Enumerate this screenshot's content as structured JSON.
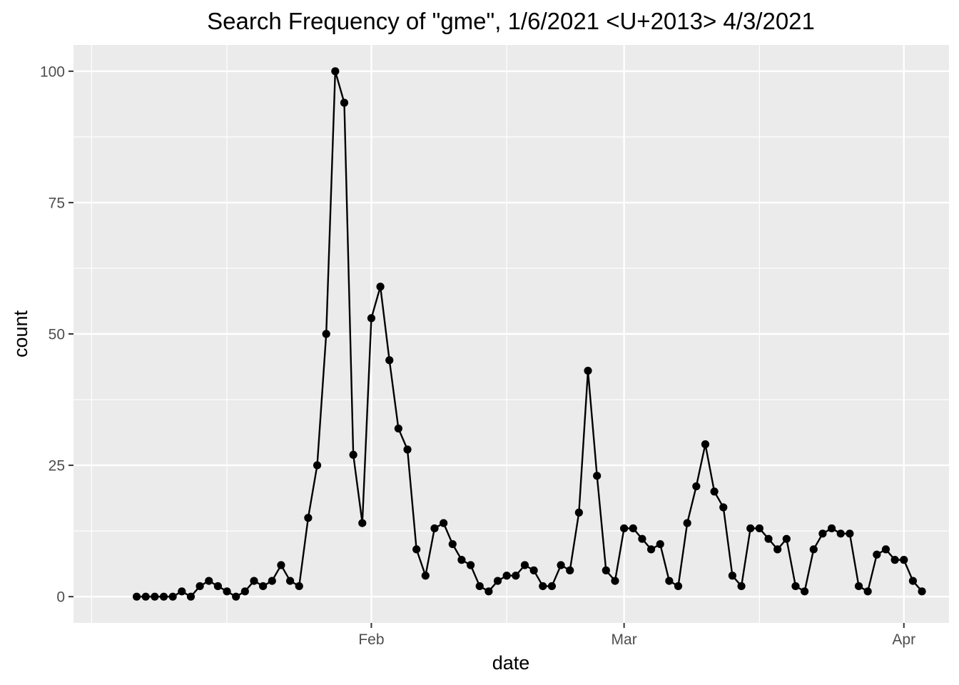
{
  "chart_data": {
    "type": "line",
    "title": "Search Frequency of \"gme\", 1/6/2021 <U+2013> 4/3/2021",
    "xlabel": "date",
    "ylabel": "count",
    "x_start": "2021-01-06",
    "x_end": "2021-04-03",
    "xlim": [
      "2020-12-30",
      "2021-04-06"
    ],
    "ylim": [
      -5,
      105
    ],
    "x_ticks": [
      {
        "date": "2021-02-01",
        "label": "Feb"
      },
      {
        "date": "2021-03-01",
        "label": "Mar"
      },
      {
        "date": "2021-04-01",
        "label": "Apr"
      }
    ],
    "x_minor_dates": [
      "2021-01-01",
      "2021-01-16",
      "2021-02-16",
      "2021-03-16"
    ],
    "y_ticks": [
      0,
      25,
      50,
      75,
      100
    ],
    "y_tick_labels": [
      "0",
      "25",
      "50",
      "75",
      "100"
    ],
    "series": [
      {
        "color": "#000000",
        "values": [
          0,
          0,
          0,
          0,
          0,
          1,
          0,
          2,
          3,
          2,
          1,
          0,
          1,
          3,
          2,
          3,
          6,
          3,
          2,
          15,
          25,
          50,
          100,
          94,
          27,
          14,
          53,
          59,
          45,
          32,
          28,
          9,
          4,
          13,
          14,
          10,
          7,
          6,
          2,
          1,
          3,
          4,
          4,
          6,
          5,
          2,
          2,
          6,
          5,
          16,
          43,
          23,
          5,
          3,
          13,
          13,
          11,
          9,
          10,
          3,
          2,
          14,
          21,
          29,
          20,
          17,
          4,
          2,
          13,
          13,
          11,
          9,
          11,
          2,
          1,
          9,
          12,
          13,
          12,
          12,
          2,
          1,
          8,
          9,
          7,
          7,
          3,
          1
        ]
      }
    ],
    "grid": true,
    "legend": "none",
    "panel_background": "#ebebeb",
    "grid_color": "#ffffff"
  }
}
